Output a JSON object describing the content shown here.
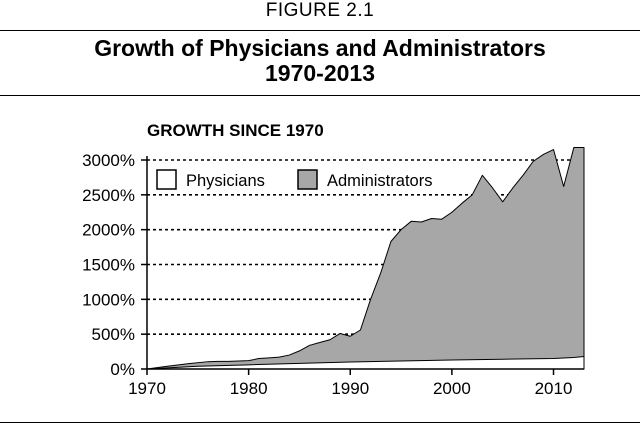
{
  "figure_label": "FIGURE 2.1",
  "title_lines": [
    "Growth of Physicians and Administrators",
    "1970-2013"
  ],
  "chart_data": {
    "type": "area",
    "title": "Growth of Physicians and Administrators 1970-2013",
    "subtitle": "GROWTH SINCE 1970",
    "xlabel": "",
    "ylabel": "",
    "xlim": [
      1970,
      2013
    ],
    "ylim": [
      0,
      3000
    ],
    "x_ticks": [
      1970,
      1980,
      1990,
      2000,
      2010
    ],
    "x_tick_labels": [
      "1970",
      "1980",
      "1990",
      "2000",
      "2010"
    ],
    "y_ticks": [
      0,
      500,
      1000,
      1500,
      2000,
      2500,
      3000
    ],
    "y_tick_labels": [
      "0%",
      "500%",
      "1000%",
      "1500%",
      "2000%",
      "2500%",
      "3000%"
    ],
    "grid": "horizontal dashed",
    "legend_position": "top-left",
    "series": [
      {
        "name": "Administrators",
        "color": "#a7a7a7",
        "points": [
          [
            1970,
            0
          ],
          [
            1972,
            40
          ],
          [
            1974,
            75
          ],
          [
            1976,
            105
          ],
          [
            1977,
            110
          ],
          [
            1978,
            110
          ],
          [
            1979,
            115
          ],
          [
            1980,
            120
          ],
          [
            1981,
            150
          ],
          [
            1982,
            160
          ],
          [
            1983,
            170
          ],
          [
            1984,
            200
          ],
          [
            1985,
            260
          ],
          [
            1986,
            340
          ],
          [
            1987,
            380
          ],
          [
            1988,
            420
          ],
          [
            1989,
            510
          ],
          [
            1990,
            470
          ],
          [
            1991,
            560
          ],
          [
            1992,
            1000
          ],
          [
            1993,
            1380
          ],
          [
            1994,
            1830
          ],
          [
            1995,
            2000
          ],
          [
            1996,
            2120
          ],
          [
            1997,
            2110
          ],
          [
            1998,
            2160
          ],
          [
            1999,
            2150
          ],
          [
            2000,
            2250
          ],
          [
            2001,
            2380
          ],
          [
            2002,
            2500
          ],
          [
            2003,
            2780
          ],
          [
            2004,
            2600
          ],
          [
            2005,
            2400
          ],
          [
            2006,
            2600
          ],
          [
            2007,
            2780
          ],
          [
            2008,
            2980
          ],
          [
            2009,
            3080
          ],
          [
            2010,
            3150
          ],
          [
            2011,
            2620
          ],
          [
            2012,
            3180
          ],
          [
            2013,
            3180
          ]
        ]
      },
      {
        "name": "Physicians",
        "color": "#ffffff",
        "points": [
          [
            1970,
            0
          ],
          [
            1975,
            40
          ],
          [
            1980,
            60
          ],
          [
            1985,
            80
          ],
          [
            1990,
            100
          ],
          [
            1995,
            115
          ],
          [
            2000,
            130
          ],
          [
            2005,
            140
          ],
          [
            2010,
            150
          ],
          [
            2012,
            165
          ],
          [
            2013,
            180
          ]
        ]
      }
    ]
  }
}
